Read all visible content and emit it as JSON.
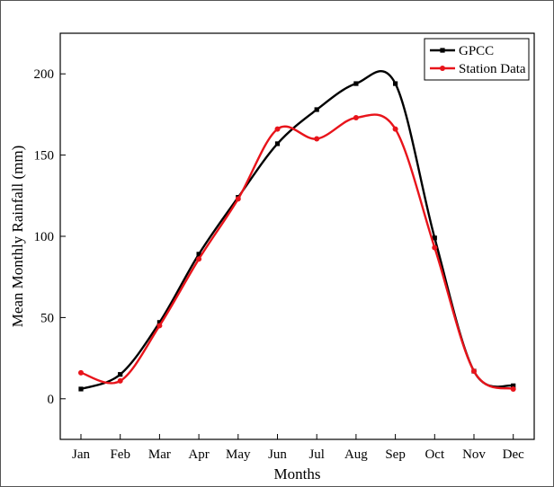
{
  "chart_data": {
    "type": "line",
    "categories": [
      "Jan",
      "Feb",
      "Mar",
      "Apr",
      "May",
      "Jun",
      "Jul",
      "Aug",
      "Sep",
      "Oct",
      "Nov",
      "Dec"
    ],
    "series": [
      {
        "name": "GPCC",
        "color": "#000000",
        "marker": "square",
        "values": [
          6,
          15,
          47,
          89,
          124,
          157,
          178,
          194,
          194,
          99,
          17,
          8
        ]
      },
      {
        "name": "Station Data",
        "color": "#e8141b",
        "marker": "circle",
        "values": [
          16,
          11,
          45,
          86,
          123,
          166,
          160,
          173,
          166,
          93,
          17,
          6
        ]
      }
    ],
    "xlabel": "Months",
    "ylabel": "Mean Monthly Rainfall (mm)",
    "ylim": [
      -25,
      225
    ],
    "yticks": [
      "0",
      "50",
      "100",
      "150",
      "200"
    ],
    "legend": "top-right",
    "grid": false
  }
}
